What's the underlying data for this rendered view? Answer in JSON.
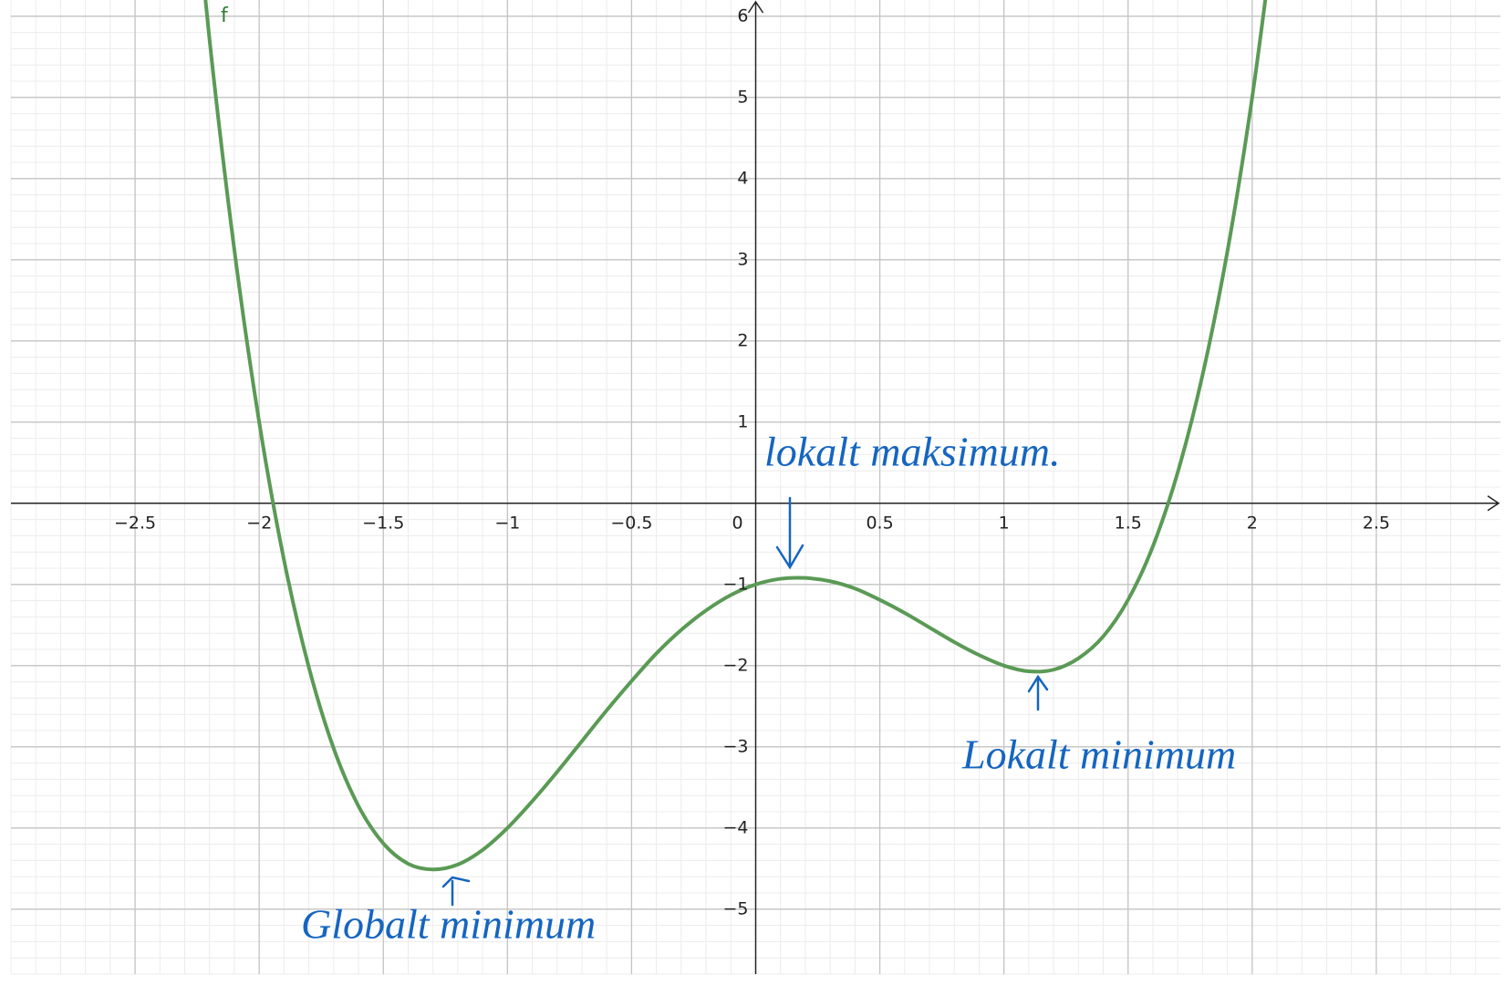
{
  "chart_data": {
    "type": "line",
    "function_label": "f",
    "x": [
      -2.3,
      -2.2,
      -2.1,
      -2.0,
      -1.9,
      -1.8,
      -1.7,
      -1.6,
      -1.5,
      -1.4,
      -1.3,
      -1.2,
      -1.1,
      -1.0,
      -0.9,
      -0.8,
      -0.7,
      -0.6,
      -0.5,
      -0.4,
      -0.3,
      -0.2,
      -0.1,
      0,
      0.1,
      0.2,
      0.3,
      0.4,
      0.5,
      0.6,
      0.7,
      0.8,
      0.9,
      1.0,
      1.1,
      1.2,
      1.3,
      1.4,
      1.5,
      1.6,
      1.7,
      1.8,
      1.9,
      2.0,
      2.1
    ],
    "series": [
      {
        "name": "f",
        "color": "#5a9a55",
        "values": [
          8.81,
          5.71,
          3.12,
          1,
          -0.7,
          -2.02,
          -3.02,
          -3.73,
          -4.19,
          -4.44,
          -4.51,
          -4.45,
          -4.27,
          -4,
          -3.67,
          -3.31,
          -2.93,
          -2.55,
          -2.19,
          -1.85,
          -1.56,
          -1.32,
          -1.13,
          -1,
          -0.93,
          -0.92,
          -0.96,
          -1.05,
          -1.19,
          -1.35,
          -1.53,
          -1.71,
          -1.87,
          -2,
          -2.07,
          -2.05,
          -1.91,
          -1.64,
          -1.19,
          -0.53,
          0.38,
          1.58,
          3.1,
          5,
          7.32
        ]
      }
    ],
    "xlim": [
      -3,
      3
    ],
    "ylim": [
      -5.8,
      6.2
    ],
    "xticks": [
      {
        "value": -2.5,
        "label": "−2.5"
      },
      {
        "value": -2,
        "label": "−2"
      },
      {
        "value": -1.5,
        "label": "−1.5"
      },
      {
        "value": -1,
        "label": "−1"
      },
      {
        "value": -0.5,
        "label": "−0.5"
      },
      0,
      0.5,
      1,
      1.5,
      2,
      2.5
    ],
    "yticks": [
      {
        "value": -5,
        "label": "−5"
      },
      {
        "value": -4,
        "label": "−4"
      },
      {
        "value": -3,
        "label": "−3"
      },
      {
        "value": -2,
        "label": "−2"
      },
      {
        "value": -1,
        "label": "−1"
      },
      1,
      2,
      3,
      4,
      5,
      6
    ],
    "grid": true,
    "annotations": [
      "lokalt maksimum.",
      "Lokalt minimum",
      "Globalt minimum"
    ]
  }
}
